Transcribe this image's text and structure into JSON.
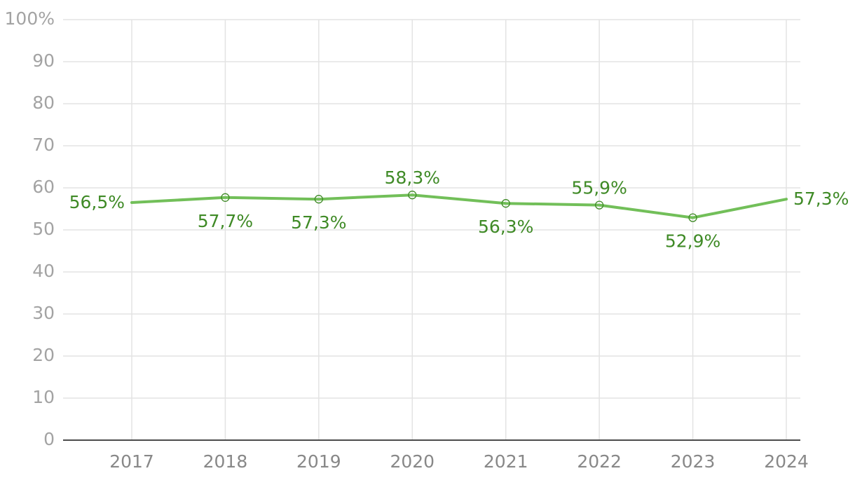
{
  "chart_data": {
    "type": "line",
    "title": "",
    "xlabel": "",
    "ylabel": "",
    "categories": [
      "2017",
      "2018",
      "2019",
      "2020",
      "2021",
      "2022",
      "2023",
      "2024"
    ],
    "ylim": [
      0,
      100
    ],
    "y_ticks": [
      0,
      10,
      20,
      30,
      40,
      50,
      60,
      70,
      80,
      90,
      100
    ],
    "y_tick_labels": [
      "0",
      "10",
      "20",
      "30",
      "40",
      "50",
      "60",
      "70",
      "80",
      "90",
      "100%"
    ],
    "grid": true,
    "legend": false,
    "series": [
      {
        "values": [
          56.5,
          57.7,
          57.3,
          58.3,
          56.3,
          55.9,
          52.9,
          57.3
        ],
        "data_labels": [
          "56,5%",
          "57,7%",
          "57,3%",
          "58,3%",
          "56,3%",
          "55,9%",
          "52,9%",
          "57,3%"
        ],
        "label_positions": [
          "left",
          "below",
          "below",
          "above",
          "below",
          "above",
          "below",
          "right"
        ],
        "color": "#72bf59",
        "label_color": "#3f8a26",
        "markers": [
          false,
          true,
          true,
          true,
          true,
          true,
          true,
          false
        ]
      }
    ]
  }
}
